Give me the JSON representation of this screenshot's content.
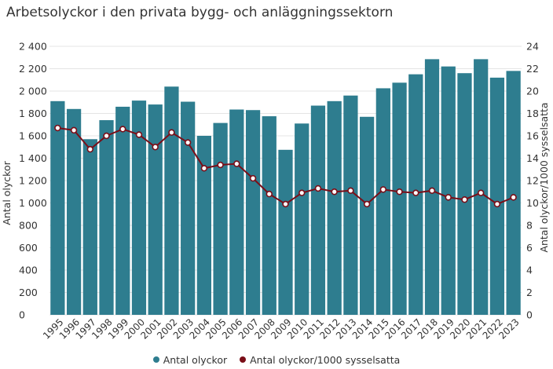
{
  "chart_data": {
    "type": "bar",
    "title": "Arbetsolyckor i den privata bygg- och anläggningssektorn",
    "categories": [
      "1995",
      "1996",
      "1997",
      "1998",
      "1999",
      "2000",
      "2001",
      "2002",
      "2003",
      "2004",
      "2005",
      "2006",
      "2007",
      "2008",
      "2009",
      "2010",
      "2011",
      "2012",
      "2013",
      "2014",
      "2015",
      "2016",
      "2017",
      "2018",
      "2019",
      "2020",
      "2021",
      "2022",
      "2023"
    ],
    "series": [
      {
        "name": "Antal olyckor",
        "type": "bar",
        "axis": "left",
        "color": "#2e7d8f",
        "values": [
          1910,
          1840,
          1570,
          1740,
          1860,
          1915,
          1880,
          2040,
          1905,
          1600,
          1715,
          1835,
          1830,
          1775,
          1475,
          1710,
          1870,
          1910,
          1960,
          1770,
          2025,
          2075,
          2150,
          2285,
          2220,
          2160,
          2285,
          2120,
          2180
        ]
      },
      {
        "name": "Antal olyckor/1000 sysselsatta",
        "type": "line",
        "axis": "right",
        "color": "#7a0e18",
        "values": [
          16.7,
          16.5,
          14.8,
          16.0,
          16.6,
          16.1,
          15.0,
          16.3,
          15.4,
          13.1,
          13.4,
          13.5,
          12.2,
          10.8,
          9.9,
          10.9,
          11.3,
          11.0,
          11.1,
          9.9,
          11.2,
          11.0,
          10.9,
          11.1,
          10.5,
          10.3,
          10.9,
          9.9,
          10.5
        ]
      }
    ],
    "y_left": {
      "label": "Antal olyckor",
      "min": 0,
      "max": 2400,
      "ticks": [
        0,
        200,
        400,
        600,
        800,
        1000,
        1200,
        1400,
        1600,
        1800,
        2000,
        2200,
        2400
      ],
      "tick_labels": [
        "0",
        "200",
        "400",
        "600",
        "800",
        "1 000",
        "1 200",
        "1 400",
        "1 600",
        "1 800",
        "2 000",
        "2 200",
        "2 400"
      ]
    },
    "y_right": {
      "label": "Antal olyckor/1000 sysselsatta",
      "min": 0,
      "max": 24,
      "ticks": [
        0,
        2,
        4,
        6,
        8,
        10,
        12,
        14,
        16,
        18,
        20,
        22,
        24
      ],
      "tick_labels": [
        "0",
        "2",
        "4",
        "6",
        "8",
        "10",
        "12",
        "14",
        "16",
        "18",
        "20",
        "22",
        "24"
      ]
    },
    "grid": true,
    "legend_position": "bottom-center"
  }
}
